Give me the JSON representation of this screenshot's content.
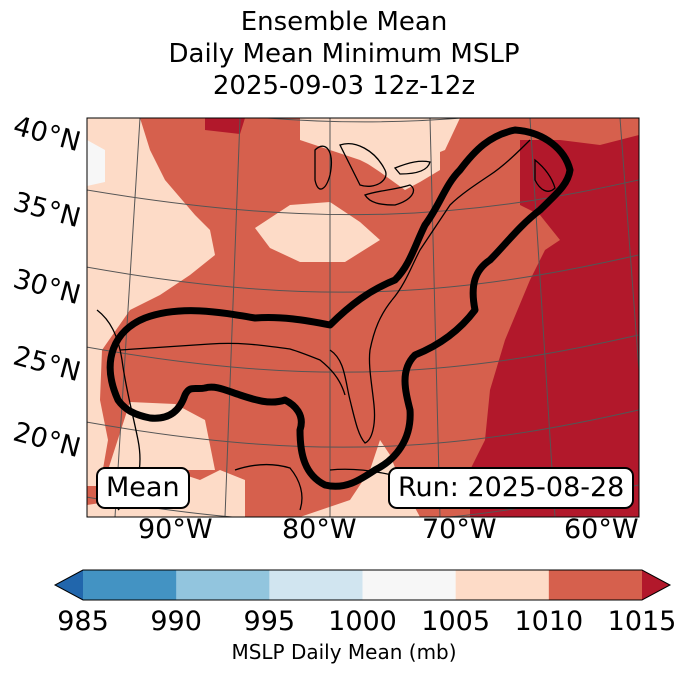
{
  "title": {
    "line1": "Ensemble Mean",
    "line2": "Daily Mean Minimum MSLP",
    "line3": "2025-09-03 12z-12z"
  },
  "map": {
    "lat_labels": [
      "40°N",
      "35°N",
      "30°N",
      "25°N",
      "20°N"
    ],
    "lon_labels": [
      "90°W",
      "80°W",
      "70°W",
      "60°W"
    ],
    "mean_box": "Mean",
    "run_box": "Run: 2025-08-28"
  },
  "colorbar": {
    "ticks": [
      "985",
      "990",
      "995",
      "1000",
      "1005",
      "1010",
      "1015"
    ],
    "colors": [
      "#2166ac",
      "#4393c3",
      "#92c5de",
      "#d1e5f0",
      "#f7f7f7",
      "#fddbc7",
      "#d6604d",
      "#b2182b"
    ],
    "label": "MSLP Daily Mean (mb)"
  },
  "chart_data": {
    "type": "heatmap",
    "title": "Ensemble Mean Daily Mean Minimum MSLP 2025-09-03 12z-12z",
    "variable": "MSLP Daily Mean",
    "units": "mb",
    "levels": [
      985,
      990,
      995,
      1000,
      1005,
      1010,
      1015
    ],
    "extend": "both",
    "region_lon_range": [
      -96,
      -58
    ],
    "region_lat_range": [
      17,
      41
    ],
    "observed_categories": [
      "1000-1005",
      "1005-1010",
      "1010-1015",
      ">1015"
    ]
  }
}
